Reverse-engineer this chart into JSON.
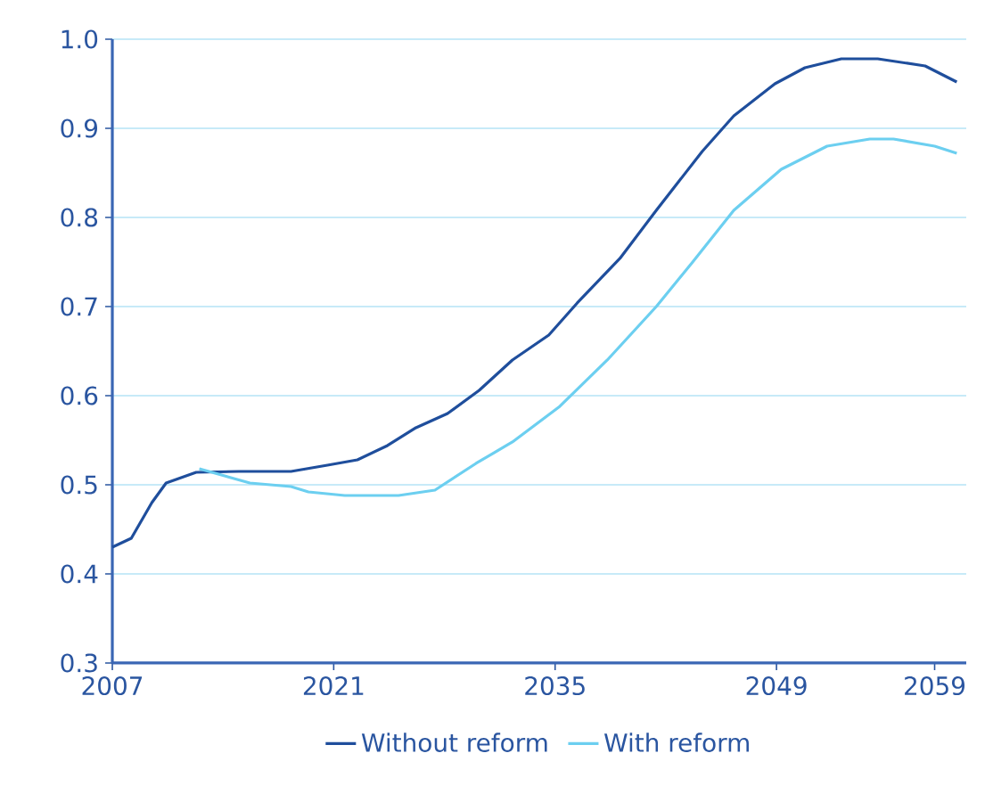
{
  "chart_data": {
    "type": "line",
    "xlim": [
      2007,
      2061
    ],
    "ylim": [
      0.3,
      1.0
    ],
    "xticks": [
      2007,
      2021,
      2035,
      2049,
      2059
    ],
    "yticks": [
      {
        "value": 0.3,
        "label": "0.3"
      },
      {
        "value": 0.4,
        "label": "0.4"
      },
      {
        "value": 0.5,
        "label": "0.5"
      },
      {
        "value": 0.6,
        "label": "0.6"
      },
      {
        "value": 0.7,
        "label": "0.7"
      },
      {
        "value": 0.8,
        "label": "0.8"
      },
      {
        "value": 0.9,
        "label": "0.9"
      },
      {
        "value": 1.0,
        "label": "1.0"
      }
    ],
    "grid": "y",
    "legend": "bottom",
    "marker": "none",
    "line_style": "solid",
    "series": [
      {
        "name": "Without reform",
        "color": "#1f4e9c",
        "x": [
          2007,
          2008.2,
          2009.5,
          2010.4,
          2012.3,
          2015,
          2018.3,
          2020.6,
          2022.5,
          2024.4,
          2026.2,
          2028.2,
          2030.2,
          2032.3,
          2034.6,
          2036.4,
          2039.1,
          2041.4,
          2044.3,
          2046.3,
          2048.9,
          2050.8,
          2053.1,
          2055.4,
          2058.4,
          2060.4
        ],
        "values": [
          0.43,
          0.44,
          0.48,
          0.502,
          0.514,
          0.515,
          0.515,
          0.522,
          0.528,
          0.544,
          0.564,
          0.58,
          0.606,
          0.64,
          0.668,
          0.704,
          0.754,
          0.808,
          0.874,
          0.914,
          0.95,
          0.968,
          0.978,
          0.978,
          0.97,
          0.952
        ]
      },
      {
        "name": "With reform",
        "color": "#6ccff0",
        "x": [
          2012.5,
          2015.7,
          2018.3,
          2019.4,
          2021.7,
          2025.1,
          2027.4,
          2030,
          2032.3,
          2035.3,
          2038.3,
          2041.4,
          2043.7,
          2046.3,
          2049.3,
          2052.2,
          2054.9,
          2056.4,
          2059,
          2060.4
        ],
        "values": [
          0.518,
          0.502,
          0.498,
          0.492,
          0.488,
          0.488,
          0.494,
          0.524,
          0.548,
          0.588,
          0.64,
          0.7,
          0.75,
          0.808,
          0.854,
          0.88,
          0.888,
          0.888,
          0.88,
          0.872
        ]
      }
    ]
  }
}
